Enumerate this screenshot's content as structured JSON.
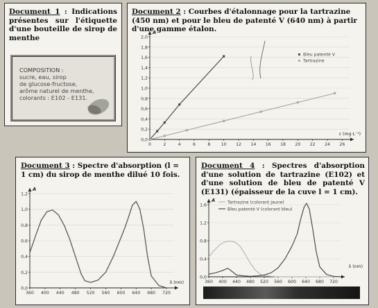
{
  "doc1": {
    "label": "Document 1",
    "rest": " : Indications présentes sur l'étiquette d'une bouteille de sirop de menthe",
    "composition_title": "COMPOSITION :",
    "composition_lines": [
      "sucre, eau, sirop",
      "de glucose-fructose,",
      "arôme naturel de menthe,",
      "colorants : E102 - E131."
    ]
  },
  "doc2": {
    "label": "Document 2",
    "rest": " : Courbes d'étalonnage pour la tartrazine (450 nm) et pour le bleu de patenté V (640 nm) à partir d'une gamme étalon."
  },
  "doc3": {
    "label": "Document 3",
    "rest": " : Spectre d'absorption (l = 1 cm) du sirop de menthe dilué 10 fois."
  },
  "doc4": {
    "label": "Document 4",
    "rest": " : Spectres d'absorption d'une solution de tartrazine (E102) et d'une solution de bleu de patenté V (E131) (épaisseur de la cuve l = 1 cm)."
  },
  "colors": {
    "blue_series": "#4b4b4b",
    "yellow_series": "#aaaaaa"
  },
  "chart_data": [
    {
      "type": "line",
      "ylabel": "A",
      "xlabel": "c (mg·L⁻¹)",
      "xlim": [
        0,
        27
      ],
      "ylim": [
        0,
        2.0
      ],
      "x_ticks": [
        0,
        2,
        4,
        6,
        8,
        10,
        12,
        14,
        16,
        18,
        20,
        22,
        24,
        26
      ],
      "y_ticks": [
        0.0,
        0.2,
        0.4,
        0.6,
        0.8,
        1.0,
        1.2,
        1.4,
        1.6,
        1.8,
        2.0
      ],
      "legend": "right",
      "series": [
        {
          "name": "Bleu patenté V",
          "x": [
            0,
            1,
            2,
            4,
            10
          ],
          "y": [
            0,
            0.16,
            0.33,
            0.68,
            1.62
          ]
        },
        {
          "name": "Tartrazine",
          "x": [
            0,
            2,
            5,
            10,
            15,
            20,
            25
          ],
          "y": [
            0,
            0.07,
            0.18,
            0.36,
            0.54,
            0.72,
            0.9
          ]
        }
      ]
    },
    {
      "type": "line",
      "ylabel": "A",
      "xlabel": "λ (nm)",
      "xlim": [
        360,
        740
      ],
      "ylim": [
        0,
        1.2
      ],
      "x_ticks": [
        360,
        400,
        440,
        480,
        520,
        560,
        600,
        640,
        680,
        720
      ],
      "y_ticks": [
        0.0,
        0.2,
        0.4,
        0.6,
        0.8,
        1.0,
        1.2
      ],
      "series": [
        {
          "x": [
            360,
            375,
            390,
            405,
            420,
            435,
            450,
            465,
            480,
            495,
            505,
            520,
            540,
            560,
            580,
            600,
            610,
            620,
            630,
            640,
            650,
            660,
            670,
            680,
            700,
            720,
            740
          ],
          "y": [
            0.45,
            0.66,
            0.86,
            0.97,
            0.99,
            0.93,
            0.8,
            0.62,
            0.4,
            0.18,
            0.09,
            0.07,
            0.1,
            0.2,
            0.4,
            0.64,
            0.76,
            0.9,
            1.05,
            1.1,
            1.0,
            0.75,
            0.4,
            0.15,
            0.03,
            0.0,
            0.0
          ]
        }
      ]
    },
    {
      "type": "line",
      "ylabel": "A",
      "xlabel": "λ (nm)",
      "xlim": [
        360,
        740
      ],
      "ylim": [
        0,
        1.6
      ],
      "x_ticks": [
        360,
        400,
        440,
        480,
        520,
        560,
        600,
        640,
        680,
        720
      ],
      "y_ticks": [
        0,
        0.4,
        0.8,
        1.2,
        1.6
      ],
      "legend": "top",
      "series": [
        {
          "name": "Tartrazine (colorant jaune)",
          "x": [
            360,
            375,
            390,
            405,
            420,
            435,
            450,
            465,
            480,
            495,
            510,
            525,
            540,
            560,
            600,
            640,
            700,
            740
          ],
          "y": [
            0.44,
            0.58,
            0.7,
            0.77,
            0.79,
            0.77,
            0.68,
            0.5,
            0.3,
            0.14,
            0.05,
            0.02,
            0.01,
            0.0,
            0.0,
            0.0,
            0.0,
            0.0
          ]
        },
        {
          "name": "Bleu patenté V (colorant bleu)",
          "x": [
            360,
            380,
            400,
            415,
            425,
            440,
            460,
            480,
            500,
            520,
            540,
            560,
            580,
            600,
            615,
            625,
            635,
            642,
            650,
            660,
            670,
            680,
            700,
            720,
            740
          ],
          "y": [
            0.06,
            0.09,
            0.14,
            0.19,
            0.13,
            0.04,
            0.02,
            0.01,
            0.02,
            0.04,
            0.09,
            0.2,
            0.4,
            0.68,
            0.95,
            1.28,
            1.55,
            1.63,
            1.5,
            1.05,
            0.55,
            0.22,
            0.05,
            0.01,
            0.0
          ]
        }
      ]
    }
  ]
}
